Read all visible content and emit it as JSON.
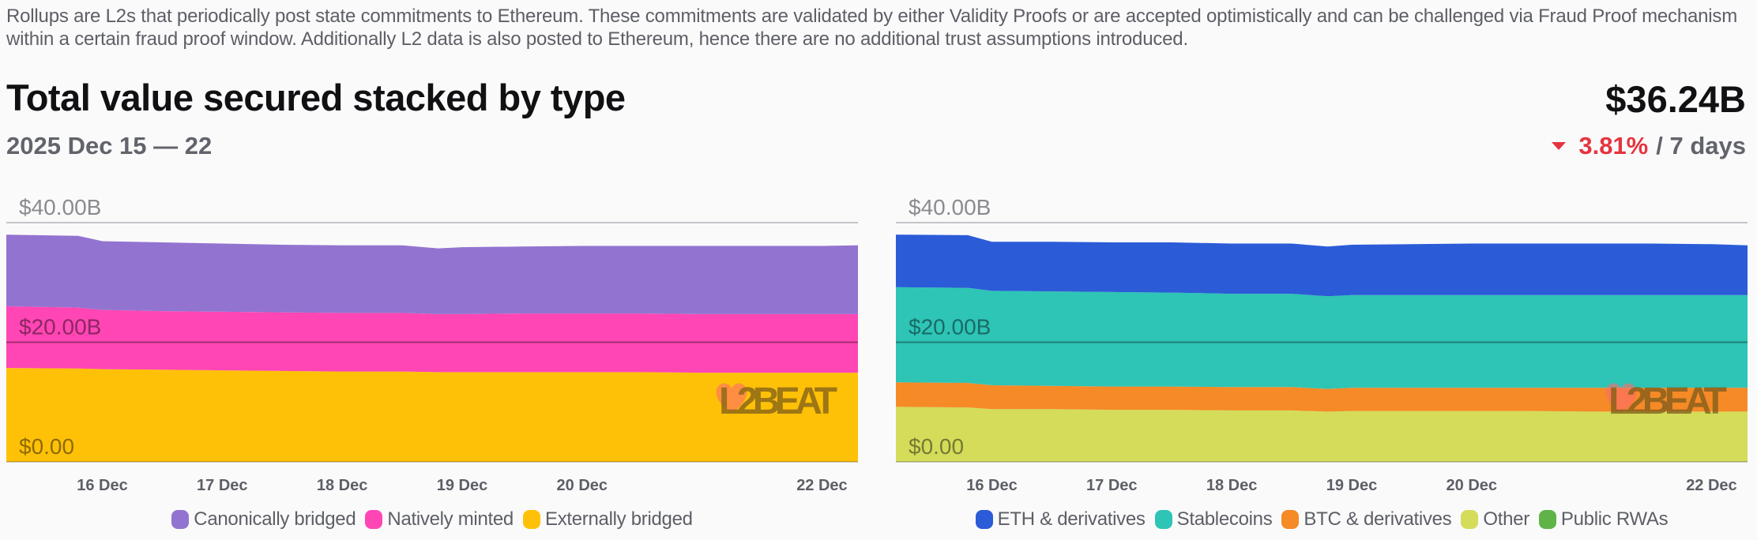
{
  "description": "Rollups are L2s that periodically post state commitments to Ethereum. These commitments are validated by either Validity Proofs or are accepted optimistically and can be challenged via Fraud Proof mechanism within a certain fraud proof window. Additionally L2 data is also posted to Ethereum, hence there are no additional trust assumptions introduced.",
  "header": {
    "title": "Total value secured stacked by type",
    "date_range": "2025 Dec 15 — 22",
    "total_value": "$36.24B",
    "change_pct": "3.81%",
    "change_direction": "down",
    "change_period": "/ 7 days"
  },
  "watermark": "L2BEAT",
  "chart_data": [
    {
      "type": "area",
      "stacked": true,
      "title": "Total value secured stacked by type",
      "xlabel": "",
      "ylabel": "",
      "ylim": [
        0,
        40
      ],
      "y_unit": "B USD",
      "y_ticks": [
        "$0.00",
        "$20.00B",
        "$40.00B"
      ],
      "y_tick_values": [
        0,
        20,
        40
      ],
      "grid": true,
      "x_tick_labels": [
        "16 Dec",
        "17 Dec",
        "18 Dec",
        "19 Dec",
        "20 Dec",
        "22 Dec"
      ],
      "x_tick_positions": [
        1,
        2,
        3,
        4,
        5,
        7
      ],
      "x_range": [
        0.2,
        7.3
      ],
      "x": [
        0.2,
        0.8,
        1.0,
        1.5,
        2.0,
        2.5,
        3.0,
        3.5,
        3.8,
        4.0,
        4.5,
        5.0,
        5.5,
        6.0,
        6.5,
        7.0,
        7.3
      ],
      "legend_position": "bottom",
      "series": [
        {
          "name": "Externally bridged",
          "color": "#ffc107",
          "values": [
            15.7,
            15.6,
            15.5,
            15.4,
            15.3,
            15.2,
            15.1,
            15.1,
            15.0,
            15.0,
            15.0,
            15.0,
            15.0,
            14.9,
            14.9,
            14.9,
            14.9
          ]
        },
        {
          "name": "Natively minted",
          "color": "#ff46b4",
          "values": [
            10.3,
            10.2,
            9.9,
            9.8,
            9.8,
            9.8,
            9.8,
            9.8,
            9.7,
            9.7,
            9.8,
            9.8,
            9.8,
            9.8,
            9.8,
            9.8,
            9.8
          ]
        },
        {
          "name": "Canonically bridged",
          "color": "#9373d0",
          "values": [
            12.0,
            12.0,
            11.5,
            11.5,
            11.4,
            11.3,
            11.3,
            11.3,
            11.0,
            11.2,
            11.2,
            11.3,
            11.3,
            11.4,
            11.4,
            11.4,
            11.5
          ]
        }
      ]
    },
    {
      "type": "area",
      "stacked": true,
      "title": "Total value secured stacked by type",
      "xlabel": "",
      "ylabel": "",
      "ylim": [
        0,
        40
      ],
      "y_unit": "B USD",
      "y_ticks": [
        "$0.00",
        "$20.00B",
        "$40.00B"
      ],
      "y_tick_values": [
        0,
        20,
        40
      ],
      "grid": true,
      "x_tick_labels": [
        "16 Dec",
        "17 Dec",
        "18 Dec",
        "19 Dec",
        "20 Dec",
        "22 Dec"
      ],
      "x_tick_positions": [
        1,
        2,
        3,
        4,
        5,
        7
      ],
      "x_range": [
        0.2,
        7.3
      ],
      "x": [
        0.2,
        0.8,
        1.0,
        1.5,
        2.0,
        2.5,
        3.0,
        3.5,
        3.8,
        4.0,
        4.5,
        5.0,
        5.5,
        6.0,
        6.5,
        7.0,
        7.3
      ],
      "legend_position": "bottom",
      "series": [
        {
          "name": "Other",
          "color": "#d4dc5a",
          "values": [
            9.2,
            9.1,
            8.8,
            8.8,
            8.7,
            8.7,
            8.6,
            8.6,
            8.4,
            8.5,
            8.5,
            8.5,
            8.5,
            8.4,
            8.4,
            8.4,
            8.4
          ]
        },
        {
          "name": "BTC & derivatives",
          "color": "#f68a26",
          "values": [
            4.1,
            4.1,
            4.0,
            3.9,
            3.9,
            3.9,
            3.9,
            3.9,
            3.8,
            3.9,
            3.9,
            3.9,
            3.9,
            4.0,
            4.0,
            4.0,
            4.0
          ]
        },
        {
          "name": "Stablecoins",
          "color": "#2ec4b6",
          "values": [
            15.9,
            15.9,
            15.8,
            15.8,
            15.8,
            15.7,
            15.6,
            15.6,
            15.5,
            15.5,
            15.5,
            15.5,
            15.5,
            15.5,
            15.5,
            15.5,
            15.5
          ]
        },
        {
          "name": "ETH & derivatives",
          "color": "#2b5bd7",
          "values": [
            8.8,
            8.8,
            8.2,
            8.3,
            8.3,
            8.4,
            8.4,
            8.4,
            8.3,
            8.4,
            8.5,
            8.6,
            8.6,
            8.6,
            8.6,
            8.5,
            8.3
          ]
        },
        {
          "name": "Public RWAs",
          "color": "#5fb347",
          "values": [
            0,
            0,
            0,
            0,
            0,
            0,
            0,
            0,
            0,
            0,
            0,
            0,
            0,
            0,
            0,
            0,
            0
          ]
        }
      ]
    }
  ],
  "legends": [
    [
      {
        "label": "Canonically bridged",
        "color": "#9373d0"
      },
      {
        "label": "Natively minted",
        "color": "#ff46b4"
      },
      {
        "label": "Externally bridged",
        "color": "#ffc107"
      }
    ],
    [
      {
        "label": "ETH & derivatives",
        "color": "#2b5bd7"
      },
      {
        "label": "Stablecoins",
        "color": "#2ec4b6"
      },
      {
        "label": "BTC & derivatives",
        "color": "#f68a26"
      },
      {
        "label": "Other",
        "color": "#d4dc5a"
      },
      {
        "label": "Public RWAs",
        "color": "#5fb347"
      }
    ]
  ]
}
